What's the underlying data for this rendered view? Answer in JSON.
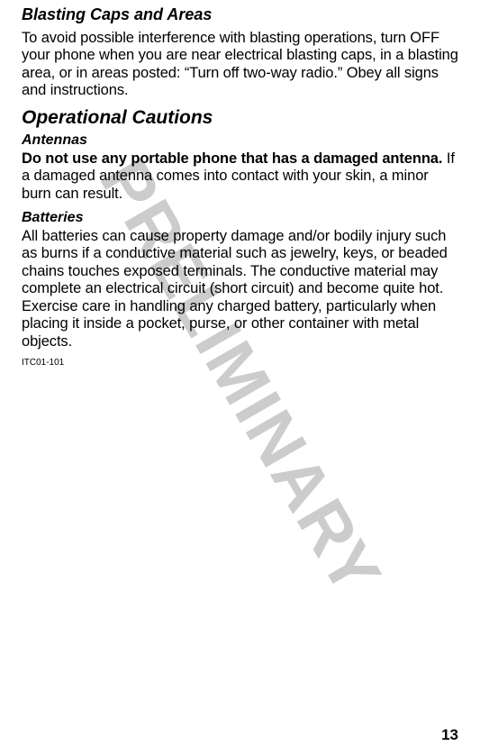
{
  "watermark": "PRELIMINARY",
  "sections": {
    "blasting": {
      "heading": "Blasting Caps and Areas",
      "para": "To avoid possible interference with blasting operations, turn OFF your phone when you are near electrical blasting caps, in a blasting area, or in areas posted: “Turn off two-way radio.” Obey all signs and instructions."
    },
    "operational": {
      "heading": "Operational Cautions"
    },
    "antennas": {
      "heading": "Antennas",
      "bold_lead": "Do not use any portable phone that has a damaged antenna.",
      "para_rest": " If a damaged antenna comes into contact with your skin, a minor burn can result."
    },
    "batteries": {
      "heading": "Batteries",
      "para": "All batteries can cause property damage and/or bodily injury such as burns if a conductive material such as jewelry, keys, or beaded chains touches exposed terminals. The conductive material may complete an electrical circuit (short circuit) and become quite hot. Exercise care in handling any charged battery, particularly when placing it inside a pocket, purse, or other container with metal objects."
    }
  },
  "doc_code": "ITC01-101",
  "page_number": "13",
  "colors": {
    "watermark": "#cccccc",
    "text": "#000000",
    "background": "#ffffff"
  },
  "typography": {
    "watermark_fontsize": 76,
    "h_sub_fontsize": 18,
    "h_main_fontsize": 21,
    "h_mini_fontsize": 16,
    "body_fontsize": 16.5,
    "code_fontsize": 10,
    "page_num_fontsize": 17
  }
}
